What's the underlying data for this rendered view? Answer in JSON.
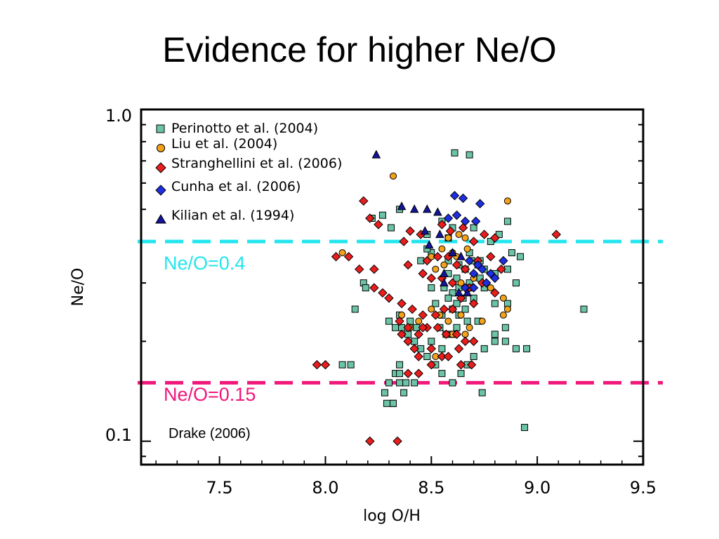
{
  "slide": {
    "title": "Evidence for higher Ne/O"
  },
  "chart_data": {
    "type": "scatter",
    "title": "",
    "xlabel": "log O/H",
    "ylabel": "Ne/O",
    "xlim": [
      7.13,
      9.5
    ],
    "ylim": [
      0.085,
      1.0
    ],
    "y_scale": "log",
    "x_ticks": [
      "7.5",
      "8.0",
      "8.5",
      "9.0",
      "9.5"
    ],
    "y_ticks": [
      "1.0",
      "0.1"
    ],
    "legend_position": "top-left",
    "credit": "Drake (2006)",
    "reference_lines": [
      {
        "label": "Ne/O=0.4",
        "y": 0.4,
        "color": "#22e5ee"
      },
      {
        "label": "Ne/O=0.15",
        "y": 0.15,
        "color": "#f0167a"
      }
    ],
    "series": [
      {
        "name": "Perinotto et al. (2004)",
        "marker": "square",
        "color": "#6cc4a8",
        "points": [
          [
            8.22,
            0.47
          ],
          [
            8.27,
            0.48
          ],
          [
            8.35,
            0.5
          ],
          [
            8.6,
            0.44
          ],
          [
            8.58,
            0.41
          ],
          [
            8.5,
            0.37
          ],
          [
            8.45,
            0.35
          ],
          [
            8.58,
            0.35
          ],
          [
            8.63,
            0.34
          ],
          [
            8.66,
            0.33
          ],
          [
            8.69,
            0.35
          ],
          [
            8.72,
            0.34
          ],
          [
            8.75,
            0.33
          ],
          [
            8.8,
            0.32
          ],
          [
            8.73,
            0.31
          ],
          [
            8.68,
            0.3
          ],
          [
            8.62,
            0.31
          ],
          [
            8.56,
            0.29
          ],
          [
            8.6,
            0.28
          ],
          [
            8.65,
            0.27
          ],
          [
            8.7,
            0.27
          ],
          [
            8.75,
            0.29
          ],
          [
            8.8,
            0.26
          ],
          [
            8.52,
            0.26
          ],
          [
            8.55,
            0.24
          ],
          [
            8.6,
            0.25
          ],
          [
            8.63,
            0.24
          ],
          [
            8.67,
            0.23
          ],
          [
            8.72,
            0.23
          ],
          [
            8.62,
            0.22
          ],
          [
            8.6,
            0.21
          ],
          [
            8.57,
            0.21
          ],
          [
            8.54,
            0.22
          ],
          [
            8.5,
            0.2
          ],
          [
            8.45,
            0.19
          ],
          [
            8.42,
            0.2
          ],
          [
            8.39,
            0.21
          ],
          [
            8.36,
            0.22
          ],
          [
            8.33,
            0.22
          ],
          [
            8.3,
            0.23
          ],
          [
            8.35,
            0.24
          ],
          [
            8.4,
            0.23
          ],
          [
            8.43,
            0.22
          ],
          [
            8.48,
            0.18
          ],
          [
            8.52,
            0.17
          ],
          [
            8.55,
            0.16
          ],
          [
            8.6,
            0.15
          ],
          [
            8.64,
            0.16
          ],
          [
            8.67,
            0.17
          ],
          [
            8.7,
            0.18
          ],
          [
            8.75,
            0.19
          ],
          [
            8.8,
            0.2
          ],
          [
            8.85,
            0.22
          ],
          [
            8.35,
            0.17
          ],
          [
            8.33,
            0.16
          ],
          [
            8.3,
            0.15
          ],
          [
            8.28,
            0.14
          ],
          [
            8.29,
            0.13
          ],
          [
            8.32,
            0.13
          ],
          [
            8.37,
            0.14
          ],
          [
            8.42,
            0.15
          ],
          [
            8.18,
            0.3
          ],
          [
            8.14,
            0.25
          ],
          [
            8.19,
            0.29
          ],
          [
            8.08,
            0.17
          ],
          [
            8.12,
            0.17
          ],
          [
            8.8,
            0.21
          ],
          [
            8.85,
            0.2
          ],
          [
            8.9,
            0.19
          ],
          [
            8.95,
            0.19
          ],
          [
            9.22,
            0.25
          ],
          [
            8.94,
            0.11
          ],
          [
            8.61,
            0.74
          ],
          [
            8.68,
            0.73
          ],
          [
            8.55,
            0.46
          ],
          [
            8.7,
            0.44
          ],
          [
            8.78,
            0.4
          ],
          [
            8.82,
            0.42
          ],
          [
            8.88,
            0.37
          ],
          [
            8.92,
            0.36
          ],
          [
            8.86,
            0.33
          ],
          [
            8.48,
            0.42
          ],
          [
            8.48,
            0.38
          ],
          [
            8.5,
            0.29
          ],
          [
            8.68,
            0.37
          ],
          [
            8.73,
            0.35
          ],
          [
            8.31,
            0.44
          ],
          [
            8.35,
            0.15
          ],
          [
            8.38,
            0.15
          ],
          [
            8.74,
            0.14
          ],
          [
            8.55,
            0.19
          ],
          [
            8.58,
            0.27
          ],
          [
            8.62,
            0.26
          ],
          [
            8.66,
            0.25
          ],
          [
            8.68,
            0.29
          ],
          [
            8.63,
            0.29
          ],
          [
            8.58,
            0.32
          ],
          [
            8.86,
            0.26
          ],
          [
            8.9,
            0.3
          ],
          [
            8.86,
            0.46
          ],
          [
            8.32,
            0.13
          ],
          [
            8.35,
            0.16
          ]
        ]
      },
      {
        "name": "Liu et al. (2004)",
        "marker": "circle",
        "color": "#f4a21b",
        "points": [
          [
            8.86,
            0.53
          ],
          [
            8.32,
            0.63
          ],
          [
            8.08,
            0.37
          ],
          [
            8.63,
            0.42
          ],
          [
            8.58,
            0.41
          ],
          [
            8.66,
            0.41
          ],
          [
            8.5,
            0.36
          ],
          [
            8.55,
            0.38
          ],
          [
            8.6,
            0.37
          ],
          [
            8.62,
            0.36
          ],
          [
            8.67,
            0.38
          ],
          [
            8.52,
            0.33
          ],
          [
            8.56,
            0.34
          ],
          [
            8.64,
            0.3
          ],
          [
            8.7,
            0.31
          ],
          [
            8.78,
            0.29
          ],
          [
            8.84,
            0.27
          ],
          [
            8.86,
            0.25
          ],
          [
            8.5,
            0.25
          ],
          [
            8.54,
            0.24
          ],
          [
            8.58,
            0.23
          ],
          [
            8.64,
            0.24
          ],
          [
            8.68,
            0.22
          ],
          [
            8.74,
            0.23
          ],
          [
            8.84,
            0.24
          ],
          [
            8.44,
            0.23
          ],
          [
            8.4,
            0.22
          ],
          [
            8.36,
            0.24
          ],
          [
            8.52,
            0.18
          ],
          [
            8.6,
            0.21
          ],
          [
            8.66,
            0.21
          ]
        ]
      },
      {
        "name": "Stranghellini et al. (2006)",
        "marker": "diamond",
        "color": "#ea1d1d",
        "points": [
          [
            8.18,
            0.53
          ],
          [
            8.21,
            0.47
          ],
          [
            8.25,
            0.45
          ],
          [
            8.37,
            0.4
          ],
          [
            8.4,
            0.43
          ],
          [
            8.45,
            0.42
          ],
          [
            8.55,
            0.45
          ],
          [
            8.59,
            0.43
          ],
          [
            8.65,
            0.44
          ],
          [
            8.7,
            0.4
          ],
          [
            8.75,
            0.42
          ],
          [
            8.8,
            0.41
          ],
          [
            9.09,
            0.42
          ],
          [
            8.05,
            0.36
          ],
          [
            8.11,
            0.36
          ],
          [
            8.16,
            0.33
          ],
          [
            8.23,
            0.33
          ],
          [
            8.39,
            0.34
          ],
          [
            8.48,
            0.35
          ],
          [
            8.53,
            0.36
          ],
          [
            8.58,
            0.36
          ],
          [
            8.62,
            0.34
          ],
          [
            8.66,
            0.33
          ],
          [
            8.72,
            0.35
          ],
          [
            8.78,
            0.36
          ],
          [
            8.83,
            0.33
          ],
          [
            8.46,
            0.32
          ],
          [
            8.5,
            0.31
          ],
          [
            8.55,
            0.31
          ],
          [
            8.6,
            0.3
          ],
          [
            8.68,
            0.29
          ],
          [
            8.74,
            0.3
          ],
          [
            8.8,
            0.28
          ],
          [
            8.23,
            0.29
          ],
          [
            8.27,
            0.28
          ],
          [
            8.3,
            0.27
          ],
          [
            8.36,
            0.26
          ],
          [
            8.41,
            0.25
          ],
          [
            8.46,
            0.24
          ],
          [
            8.52,
            0.24
          ],
          [
            8.56,
            0.25
          ],
          [
            8.6,
            0.25
          ],
          [
            8.64,
            0.27
          ],
          [
            8.7,
            0.26
          ],
          [
            8.35,
            0.23
          ],
          [
            8.39,
            0.22
          ],
          [
            8.44,
            0.21
          ],
          [
            8.48,
            0.22
          ],
          [
            8.53,
            0.22
          ],
          [
            8.57,
            0.21
          ],
          [
            8.62,
            0.21
          ],
          [
            8.66,
            0.2
          ],
          [
            8.7,
            0.2
          ],
          [
            8.36,
            0.21
          ],
          [
            8.39,
            0.2
          ],
          [
            8.42,
            0.19
          ],
          [
            8.44,
            0.18
          ],
          [
            8.5,
            0.17
          ],
          [
            8.55,
            0.18
          ],
          [
            8.58,
            0.18
          ],
          [
            8.64,
            0.17
          ],
          [
            7.96,
            0.17
          ],
          [
            8.0,
            0.17
          ],
          [
            8.21,
            0.1
          ],
          [
            8.34,
            0.1
          ],
          [
            8.39,
            0.16
          ],
          [
            8.44,
            0.16
          ],
          [
            8.5,
            0.19
          ],
          [
            8.69,
            0.17
          ],
          [
            8.63,
            0.19
          ],
          [
            8.46,
            0.22
          ]
        ]
      },
      {
        "name": "Cunha et al. (2006)",
        "marker": "diamond",
        "color": "#1f2ee0",
        "points": [
          [
            8.61,
            0.55
          ],
          [
            8.65,
            0.54
          ],
          [
            8.73,
            0.52
          ],
          [
            8.58,
            0.47
          ],
          [
            8.62,
            0.48
          ],
          [
            8.66,
            0.46
          ],
          [
            8.71,
            0.46
          ],
          [
            8.68,
            0.35
          ],
          [
            8.72,
            0.34
          ],
          [
            8.74,
            0.33
          ],
          [
            8.78,
            0.32
          ],
          [
            8.8,
            0.31
          ],
          [
            8.76,
            0.3
          ],
          [
            8.7,
            0.29
          ],
          [
            8.66,
            0.29
          ],
          [
            8.7,
            0.32
          ],
          [
            8.84,
            0.35
          ]
        ]
      },
      {
        "name": "Kilian et al. (1994)",
        "marker": "triangle",
        "color": "#14149a",
        "points": [
          [
            8.24,
            0.73
          ],
          [
            8.36,
            0.51
          ],
          [
            8.42,
            0.5
          ],
          [
            8.48,
            0.5
          ],
          [
            8.53,
            0.49
          ],
          [
            8.47,
            0.43
          ],
          [
            8.54,
            0.42
          ],
          [
            8.49,
            0.39
          ],
          [
            8.6,
            0.37
          ],
          [
            8.64,
            0.36
          ],
          [
            8.56,
            0.32
          ],
          [
            8.63,
            0.28
          ],
          [
            8.67,
            0.28
          ],
          [
            8.56,
            0.3
          ]
        ]
      }
    ]
  }
}
